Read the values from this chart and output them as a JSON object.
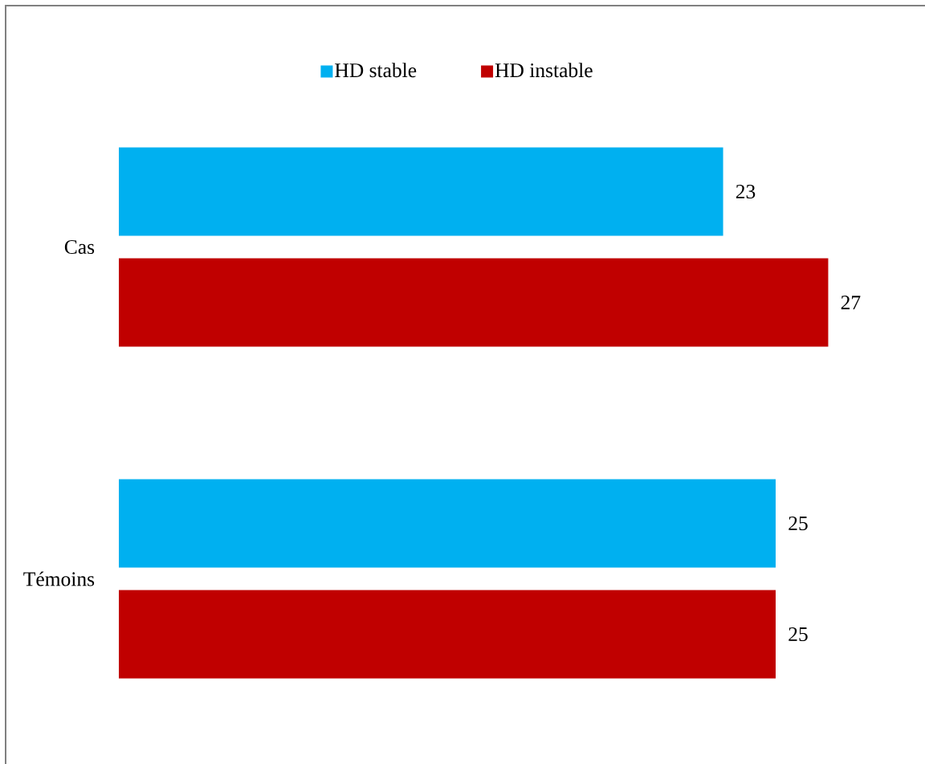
{
  "chart_data": {
    "type": "bar",
    "orientation": "horizontal",
    "categories": [
      "Cas",
      "Témoins"
    ],
    "series": [
      {
        "name": "HD stable",
        "color": "#00b0f0",
        "values": [
          23,
          25
        ]
      },
      {
        "name": "HD instable",
        "color": "#c00000",
        "values": [
          27,
          25
        ]
      }
    ],
    "data_labels": true,
    "legend": "top"
  }
}
